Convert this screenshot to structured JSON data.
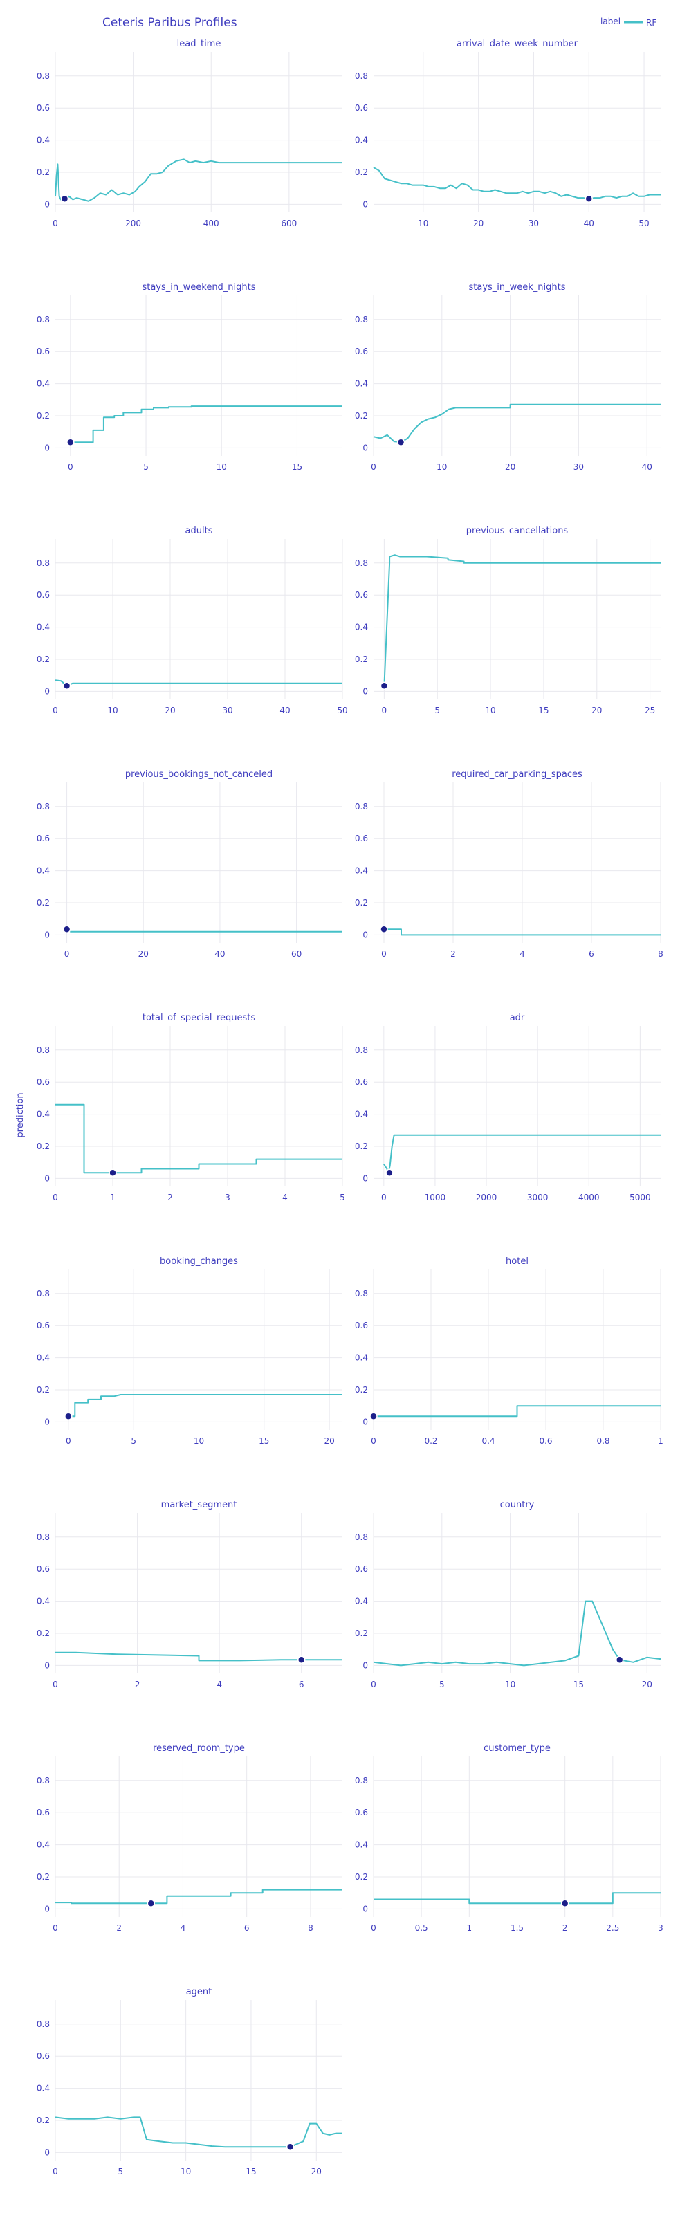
{
  "title": "Ceteris Paribus Profiles",
  "legend": {
    "title": "label",
    "entries": [
      {
        "name": "RF",
        "color": "#45c0c8"
      }
    ],
    "position": "top-right"
  },
  "ylabel": "prediction",
  "colors": {
    "line": "#45c0c8",
    "point": "#1c1f8a",
    "text": "#3f3dbf",
    "grid": "#e8e8ee"
  },
  "chart_data": [
    {
      "type": "line",
      "title": "lead_time",
      "xlim": [
        0,
        737
      ],
      "ylim": [
        -0.05,
        0.95
      ],
      "xticks": [
        0,
        200,
        400,
        600
      ],
      "yticks": [
        0,
        0.2,
        0.4,
        0.6,
        0.8
      ],
      "x": [
        0,
        3,
        6,
        8,
        10,
        14,
        18,
        25,
        35,
        45,
        55,
        70,
        85,
        100,
        115,
        130,
        145,
        160,
        175,
        190,
        205,
        215,
        230,
        245,
        260,
        275,
        290,
        310,
        330,
        345,
        360,
        380,
        400,
        420,
        450,
        500,
        737
      ],
      "values": [
        0.05,
        0.18,
        0.25,
        0.15,
        0.05,
        0.03,
        0.04,
        0.03,
        0.05,
        0.03,
        0.04,
        0.03,
        0.02,
        0.04,
        0.07,
        0.06,
        0.09,
        0.06,
        0.07,
        0.06,
        0.08,
        0.11,
        0.14,
        0.19,
        0.19,
        0.2,
        0.24,
        0.27,
        0.28,
        0.26,
        0.27,
        0.26,
        0.27,
        0.26,
        0.26,
        0.26,
        0.26
      ],
      "observation": {
        "x": 24,
        "y": 0.035
      }
    },
    {
      "type": "line",
      "title": "arrival_date_week_number",
      "xlim": [
        1,
        53
      ],
      "ylim": [
        -0.05,
        0.95
      ],
      "xticks": [
        10,
        20,
        30,
        40,
        50
      ],
      "yticks": [
        0,
        0.2,
        0.4,
        0.6,
        0.8
      ],
      "x": [
        1,
        2,
        3,
        4,
        5,
        6,
        7,
        8,
        9,
        10,
        11,
        12,
        13,
        14,
        15,
        16,
        17,
        18,
        19,
        20,
        21,
        22,
        23,
        24,
        25,
        26,
        27,
        28,
        29,
        30,
        31,
        32,
        33,
        34,
        35,
        36,
        37,
        38,
        39,
        40,
        41,
        42,
        43,
        44,
        45,
        46,
        47,
        48,
        49,
        50,
        51,
        52,
        53
      ],
      "values": [
        0.23,
        0.21,
        0.16,
        0.15,
        0.14,
        0.13,
        0.13,
        0.12,
        0.12,
        0.12,
        0.11,
        0.11,
        0.1,
        0.1,
        0.12,
        0.1,
        0.13,
        0.12,
        0.09,
        0.09,
        0.08,
        0.08,
        0.09,
        0.08,
        0.07,
        0.07,
        0.07,
        0.08,
        0.07,
        0.08,
        0.08,
        0.07,
        0.08,
        0.07,
        0.05,
        0.06,
        0.05,
        0.04,
        0.04,
        0.035,
        0.04,
        0.04,
        0.05,
        0.05,
        0.04,
        0.05,
        0.05,
        0.07,
        0.05,
        0.05,
        0.06,
        0.06,
        0.06
      ],
      "observation": {
        "x": 40,
        "y": 0.035
      }
    },
    {
      "type": "line",
      "title": "stays_in_weekend_nights",
      "xlim": [
        -1,
        18
      ],
      "ylim": [
        -0.05,
        0.95
      ],
      "xticks": [
        0,
        5,
        10,
        15
      ],
      "yticks": [
        0,
        0.2,
        0.4,
        0.6,
        0.8
      ],
      "x": [
        0,
        1.5,
        1.5,
        2.2,
        2.2,
        2.9,
        2.9,
        3.5,
        3.5,
        4.7,
        4.7,
        5.5,
        5.5,
        6.5,
        6.5,
        8,
        8,
        18
      ],
      "values": [
        0.035,
        0.035,
        0.11,
        0.11,
        0.19,
        0.19,
        0.2,
        0.2,
        0.22,
        0.22,
        0.24,
        0.24,
        0.25,
        0.25,
        0.255,
        0.255,
        0.26,
        0.26
      ],
      "observation": {
        "x": 0,
        "y": 0.035
      }
    },
    {
      "type": "line",
      "title": "stays_in_week_nights",
      "xlim": [
        0,
        42
      ],
      "ylim": [
        -0.05,
        0.95
      ],
      "xticks": [
        0,
        10,
        20,
        30,
        40
      ],
      "yticks": [
        0,
        0.2,
        0.4,
        0.6,
        0.8
      ],
      "x": [
        0,
        1,
        2,
        3,
        4,
        5,
        6,
        7,
        8,
        9,
        10,
        11,
        12,
        20,
        20,
        42
      ],
      "values": [
        0.07,
        0.06,
        0.08,
        0.04,
        0.035,
        0.06,
        0.12,
        0.16,
        0.18,
        0.19,
        0.21,
        0.24,
        0.25,
        0.25,
        0.27,
        0.27
      ],
      "observation": {
        "x": 4,
        "y": 0.035
      }
    },
    {
      "type": "line",
      "title": "adults",
      "xlim": [
        0,
        50
      ],
      "ylim": [
        -0.05,
        0.95
      ],
      "xticks": [
        0,
        10,
        20,
        30,
        40,
        50
      ],
      "yticks": [
        0,
        0.2,
        0.4,
        0.6,
        0.8
      ],
      "x": [
        0,
        1,
        2,
        3,
        50
      ],
      "values": [
        0.07,
        0.065,
        0.035,
        0.05,
        0.05
      ],
      "observation": {
        "x": 2,
        "y": 0.035
      }
    },
    {
      "type": "line",
      "title": "previous_cancellations",
      "xlim": [
        -1,
        26
      ],
      "ylim": [
        -0.05,
        0.95
      ],
      "xticks": [
        0,
        5,
        10,
        15,
        20,
        25
      ],
      "yticks": [
        0,
        0.2,
        0.4,
        0.6,
        0.8
      ],
      "x": [
        0,
        0.5,
        0.5,
        1,
        1.5,
        2,
        3,
        4,
        6,
        6,
        7.5,
        7.5,
        26
      ],
      "values": [
        0.035,
        0.8,
        0.84,
        0.85,
        0.84,
        0.84,
        0.84,
        0.84,
        0.83,
        0.82,
        0.81,
        0.8,
        0.8
      ],
      "observation": {
        "x": 0,
        "y": 0.035
      }
    },
    {
      "type": "line",
      "title": "previous_bookings_not_canceled",
      "xlim": [
        -3,
        72
      ],
      "ylim": [
        -0.05,
        0.95
      ],
      "xticks": [
        0,
        20,
        40,
        60
      ],
      "yticks": [
        0,
        0.2,
        0.4,
        0.6,
        0.8
      ],
      "x": [
        0,
        1,
        72
      ],
      "values": [
        0.035,
        0.02,
        0.02
      ],
      "observation": {
        "x": 0,
        "y": 0.035
      }
    },
    {
      "type": "line",
      "title": "required_car_parking_spaces",
      "xlim": [
        -0.3,
        8
      ],
      "ylim": [
        -0.05,
        0.95
      ],
      "xticks": [
        0,
        2,
        4,
        6,
        8
      ],
      "yticks": [
        0,
        0.2,
        0.4,
        0.6,
        0.8
      ],
      "x": [
        0,
        0.5,
        0.5,
        8
      ],
      "values": [
        0.035,
        0.035,
        0.0,
        0.0
      ],
      "observation": {
        "x": 0,
        "y": 0.035
      }
    },
    {
      "type": "line",
      "title": "total_of_special_requests",
      "xlim": [
        0,
        5
      ],
      "ylim": [
        -0.05,
        0.95
      ],
      "xticks": [
        0,
        1,
        2,
        3,
        4,
        5
      ],
      "yticks": [
        0,
        0.2,
        0.4,
        0.6,
        0.8
      ],
      "x": [
        0,
        0.5,
        0.5,
        1.5,
        1.5,
        2.5,
        2.5,
        3.5,
        3.5,
        5
      ],
      "values": [
        0.46,
        0.46,
        0.035,
        0.035,
        0.06,
        0.06,
        0.09,
        0.09,
        0.12,
        0.12
      ],
      "observation": {
        "x": 1,
        "y": 0.035
      }
    },
    {
      "type": "line",
      "title": "adr",
      "xlim": [
        -200,
        5400
      ],
      "ylim": [
        -0.05,
        0.95
      ],
      "xticks": [
        0,
        1000,
        2000,
        3000,
        4000,
        5000
      ],
      "yticks": [
        0,
        0.2,
        0.4,
        0.6,
        0.8
      ],
      "x": [
        0,
        60,
        90,
        120,
        160,
        200,
        250,
        5400
      ],
      "values": [
        0.09,
        0.06,
        0.035,
        0.08,
        0.2,
        0.27,
        0.27,
        0.27
      ],
      "observation": {
        "x": 110,
        "y": 0.035
      }
    },
    {
      "type": "line",
      "title": "booking_changes",
      "xlim": [
        -1,
        21
      ],
      "ylim": [
        -0.05,
        0.95
      ],
      "xticks": [
        0,
        5,
        10,
        15,
        20
      ],
      "yticks": [
        0,
        0.2,
        0.4,
        0.6,
        0.8
      ],
      "x": [
        0,
        0.5,
        0.5,
        1.5,
        1.5,
        2.5,
        2.5,
        3.5,
        4,
        5,
        21
      ],
      "values": [
        0.035,
        0.035,
        0.12,
        0.12,
        0.14,
        0.14,
        0.16,
        0.16,
        0.17,
        0.17,
        0.17
      ],
      "observation": {
        "x": 0,
        "y": 0.035
      }
    },
    {
      "type": "line",
      "title": "hotel",
      "xlim": [
        0,
        1
      ],
      "ylim": [
        -0.05,
        0.95
      ],
      "xticks": [
        0,
        0.2,
        0.4,
        0.6,
        0.8,
        1
      ],
      "yticks": [
        0,
        0.2,
        0.4,
        0.6,
        0.8
      ],
      "x": [
        0,
        0.5,
        0.5,
        1
      ],
      "values": [
        0.035,
        0.035,
        0.1,
        0.1
      ],
      "observation": {
        "x": 0,
        "y": 0.035
      }
    },
    {
      "type": "line",
      "title": "market_segment",
      "xlim": [
        0,
        7
      ],
      "ylim": [
        -0.05,
        0.95
      ],
      "xticks": [
        0,
        2,
        4,
        6
      ],
      "yticks": [
        0,
        0.2,
        0.4,
        0.6,
        0.8
      ],
      "x": [
        0,
        0.5,
        1.5,
        3.5,
        3.5,
        4.5,
        5.5,
        7
      ],
      "values": [
        0.08,
        0.08,
        0.07,
        0.06,
        0.03,
        0.03,
        0.035,
        0.035
      ],
      "observation": {
        "x": 6,
        "y": 0.035
      }
    },
    {
      "type": "line",
      "title": "country",
      "xlim": [
        0,
        21
      ],
      "ylim": [
        -0.05,
        0.95
      ],
      "xticks": [
        0,
        5,
        10,
        15,
        20
      ],
      "yticks": [
        0,
        0.2,
        0.4,
        0.6,
        0.8
      ],
      "x": [
        0,
        1,
        2,
        3,
        4,
        5,
        6,
        7,
        8,
        9,
        10,
        11,
        12,
        13,
        14,
        15,
        15.5,
        16,
        17,
        17.5,
        18,
        19,
        20,
        21
      ],
      "values": [
        0.02,
        0.01,
        0.0,
        0.01,
        0.02,
        0.01,
        0.02,
        0.01,
        0.01,
        0.02,
        0.01,
        0.0,
        0.01,
        0.02,
        0.03,
        0.06,
        0.4,
        0.4,
        0.2,
        0.1,
        0.035,
        0.02,
        0.05,
        0.04
      ],
      "observation": {
        "x": 18,
        "y": 0.035
      }
    },
    {
      "type": "line",
      "title": "reserved_room_type",
      "xlim": [
        0,
        9
      ],
      "ylim": [
        -0.05,
        0.95
      ],
      "xticks": [
        0,
        2,
        4,
        6,
        8
      ],
      "yticks": [
        0,
        0.2,
        0.4,
        0.6,
        0.8
      ],
      "x": [
        0,
        0.5,
        0.5,
        3.5,
        3.5,
        5.5,
        5.5,
        6.5,
        6.5,
        9
      ],
      "values": [
        0.04,
        0.04,
        0.035,
        0.035,
        0.08,
        0.08,
        0.1,
        0.1,
        0.12,
        0.12
      ],
      "observation": {
        "x": 3,
        "y": 0.035
      }
    },
    {
      "type": "line",
      "title": "customer_type",
      "xlim": [
        0,
        3
      ],
      "ylim": [
        -0.05,
        0.95
      ],
      "xticks": [
        0,
        0.5,
        1,
        1.5,
        2,
        2.5,
        3
      ],
      "yticks": [
        0,
        0.2,
        0.4,
        0.6,
        0.8
      ],
      "x": [
        0,
        1,
        1,
        2.5,
        2.5,
        3
      ],
      "values": [
        0.06,
        0.06,
        0.035,
        0.035,
        0.1,
        0.1
      ],
      "observation": {
        "x": 2,
        "y": 0.035
      }
    },
    {
      "type": "line",
      "title": "agent",
      "xlim": [
        0,
        22
      ],
      "ylim": [
        -0.05,
        0.95
      ],
      "xticks": [
        0,
        5,
        10,
        15,
        20
      ],
      "yticks": [
        0,
        0.2,
        0.4,
        0.6,
        0.8
      ],
      "x": [
        0,
        1,
        2,
        3,
        4,
        5,
        6,
        6.5,
        7,
        8,
        9,
        10,
        11,
        12,
        13,
        14,
        15,
        16,
        17,
        18,
        19,
        19.5,
        20,
        20.5,
        21,
        21.5,
        22
      ],
      "values": [
        0.22,
        0.21,
        0.21,
        0.21,
        0.22,
        0.21,
        0.22,
        0.22,
        0.08,
        0.07,
        0.06,
        0.06,
        0.05,
        0.04,
        0.035,
        0.035,
        0.035,
        0.035,
        0.035,
        0.035,
        0.07,
        0.18,
        0.18,
        0.12,
        0.11,
        0.12,
        0.12
      ],
      "observation": {
        "x": 18,
        "y": 0.035
      }
    }
  ]
}
